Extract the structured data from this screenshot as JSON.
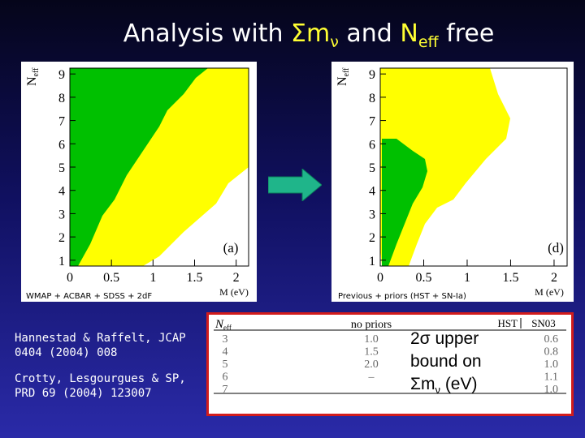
{
  "slide": {
    "title_prefix": "Analysis with ",
    "title_sum_symbol": "Σm",
    "title_nu": "ν",
    "title_and": " and ",
    "title_neff_N": "N",
    "title_neff_sub": "eff",
    "title_suffix": " free"
  },
  "left_panel": {
    "caption": "WMAP + ACBAR + SDSS + 2dF",
    "panel_label": "(a)"
  },
  "right_panel": {
    "caption": "Previous + priors (HST + SN-Ia)",
    "panel_label": "(d)"
  },
  "axes": {
    "y_label": "N",
    "y_label_sub": "eff",
    "x_label": "M (eV)",
    "y_ticks": [
      "1",
      "2",
      "3",
      "4",
      "5",
      "6",
      "7",
      "8",
      "9"
    ],
    "x_ticks": [
      "0",
      "0.5",
      "1",
      "1.5",
      "2"
    ]
  },
  "colors": {
    "inner_region": "#00c000",
    "outer_region": "#ffff00",
    "arrow": "#1fb58a",
    "table_border": "#d21c1c"
  },
  "references": [
    "Hannestad & Raffelt, JCAP 0404 (2004) 008",
    "Crotty, Lesgourgues & SP, PRD 69 (2004) 123007"
  ],
  "table": {
    "header_neff": "N",
    "header_neff_sub": "eff",
    "header_no_priors": "no priors",
    "header_hst": "HST",
    "header_sn": "SN03",
    "rows": [
      {
        "neff": "3",
        "no_priors": "1.0",
        "hst_sn": "0.6"
      },
      {
        "neff": "4",
        "no_priors": "1.5",
        "hst_sn": "0.8"
      },
      {
        "neff": "5",
        "no_priors": "2.0",
        "hst_sn": "1.0"
      },
      {
        "neff": "6",
        "no_priors": "–",
        "hst_sn": "1.1"
      },
      {
        "neff": "7",
        "no_priors": "",
        "hst_sn": "1.0"
      }
    ],
    "note_line1": "2σ upper",
    "note_line2": "bound on",
    "note_sum": "Σm",
    "note_nu": "ν",
    "note_unit": " (eV)"
  }
}
